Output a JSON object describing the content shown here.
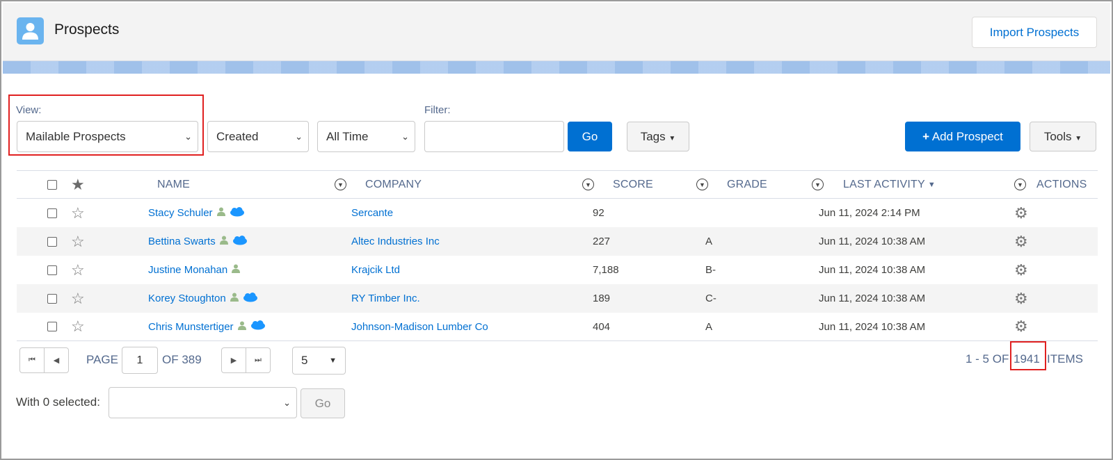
{
  "header": {
    "title": "Prospects",
    "import_label": "Import Prospects",
    "icon": "person-icon"
  },
  "toolbar": {
    "view_label": "View:",
    "view_value": "Mailable Prospects",
    "date_field_value": "Created",
    "range_value": "All Time",
    "filter_label": "Filter:",
    "filter_value": "",
    "go_label": "Go",
    "tags_label": "Tags",
    "add_label": "Add Prospect",
    "tools_label": "Tools"
  },
  "table": {
    "columns": [
      "NAME",
      "COMPANY",
      "SCORE",
      "GRADE",
      "LAST ACTIVITY",
      "ACTIONS"
    ],
    "sort_indicator": "▼",
    "rows": [
      {
        "name": "Stacy Schuler",
        "cloud": true,
        "company": "Sercante",
        "score": "92",
        "grade": "",
        "last_activity": "Jun 11, 2024 2:14 PM"
      },
      {
        "name": "Bettina Swarts",
        "cloud": true,
        "company": "Altec Industries Inc",
        "score": "227",
        "grade": "A",
        "last_activity": "Jun 11, 2024 10:38 AM"
      },
      {
        "name": "Justine Monahan",
        "cloud": false,
        "company": "Krajcik Ltd",
        "score": "7,188",
        "grade": "B-",
        "last_activity": "Jun 11, 2024 10:38 AM"
      },
      {
        "name": "Korey Stoughton",
        "cloud": true,
        "company": "RY Timber Inc.",
        "score": "189",
        "grade": "C-",
        "last_activity": "Jun 11, 2024 10:38 AM"
      },
      {
        "name": "Chris Munstertiger",
        "cloud": true,
        "company": "Johnson-Madison Lumber Co",
        "score": "404",
        "grade": "A",
        "last_activity": "Jun 11, 2024 10:38 AM"
      }
    ]
  },
  "pagination": {
    "page_label": "PAGE",
    "page_value": "1",
    "of_label": "OF 389",
    "per_page": "5",
    "range_prefix": "1 - 5 OF",
    "total": "1941",
    "items_label": "ITEMS"
  },
  "bulk": {
    "label": "With 0 selected:",
    "value": "",
    "go_label": "Go"
  },
  "colors": {
    "accent": "#0070d2",
    "highlight": "#e02020",
    "app_icon": "#6ab4ef"
  }
}
